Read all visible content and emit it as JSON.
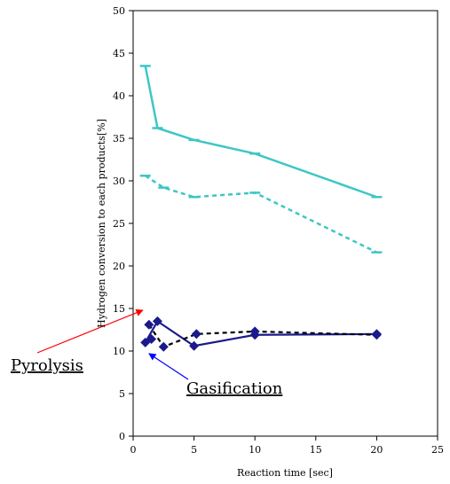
{
  "chart_data": {
    "type": "line",
    "title": "",
    "xlabel": "Reaction time [sec]",
    "ylabel": "Hydrogen conversion to each products[%]",
    "xlim": [
      0,
      25
    ],
    "ylim": [
      0,
      50
    ],
    "x_ticks": [
      0,
      5,
      10,
      15,
      20,
      25
    ],
    "y_ticks": [
      0,
      5,
      10,
      15,
      20,
      25,
      30,
      35,
      40,
      45,
      50
    ],
    "grid": false,
    "legend": "none",
    "series": [
      {
        "color": "#3ec6c6",
        "style": "solid",
        "marker": "dash",
        "x": [
          1.0,
          2.0,
          5.0,
          10.0,
          20.0
        ],
        "y": [
          43.5,
          36.2,
          34.8,
          33.2,
          28.1
        ]
      },
      {
        "color": "#3ec6c6",
        "style": "dashed",
        "marker": "dash",
        "x": [
          1.0,
          2.5,
          5.0,
          10.0,
          20.0
        ],
        "y": [
          30.6,
          29.2,
          28.1,
          28.6,
          21.6
        ]
      },
      {
        "color": "#1a1a8c",
        "style": "solid",
        "marker": "diamond",
        "x": [
          1.0,
          2.0,
          5.0,
          10.0,
          20.0
        ],
        "y": [
          11.0,
          13.5,
          10.6,
          11.9,
          12.0
        ]
      },
      {
        "color": "#000000",
        "style": "dashed",
        "marker": "diamond",
        "marker_color": "#1a1a8c",
        "x": [
          1.3,
          2.5,
          5.2,
          10.0,
          20.0
        ],
        "y": [
          13.1,
          10.5,
          12.0,
          12.3,
          11.9
        ]
      }
    ],
    "extra_points": [
      {
        "x": 1.5,
        "y": 11.4,
        "color": "#1a1a8c"
      }
    ],
    "annotations": [
      {
        "text": "Pyrolysis",
        "arrow_color": "#ff0000",
        "target_x": 0.8,
        "target_y": 14.8
      },
      {
        "text": "Gasification",
        "arrow_color": "#0000ff",
        "target_x": 1.3,
        "target_y": 9.7
      }
    ]
  }
}
